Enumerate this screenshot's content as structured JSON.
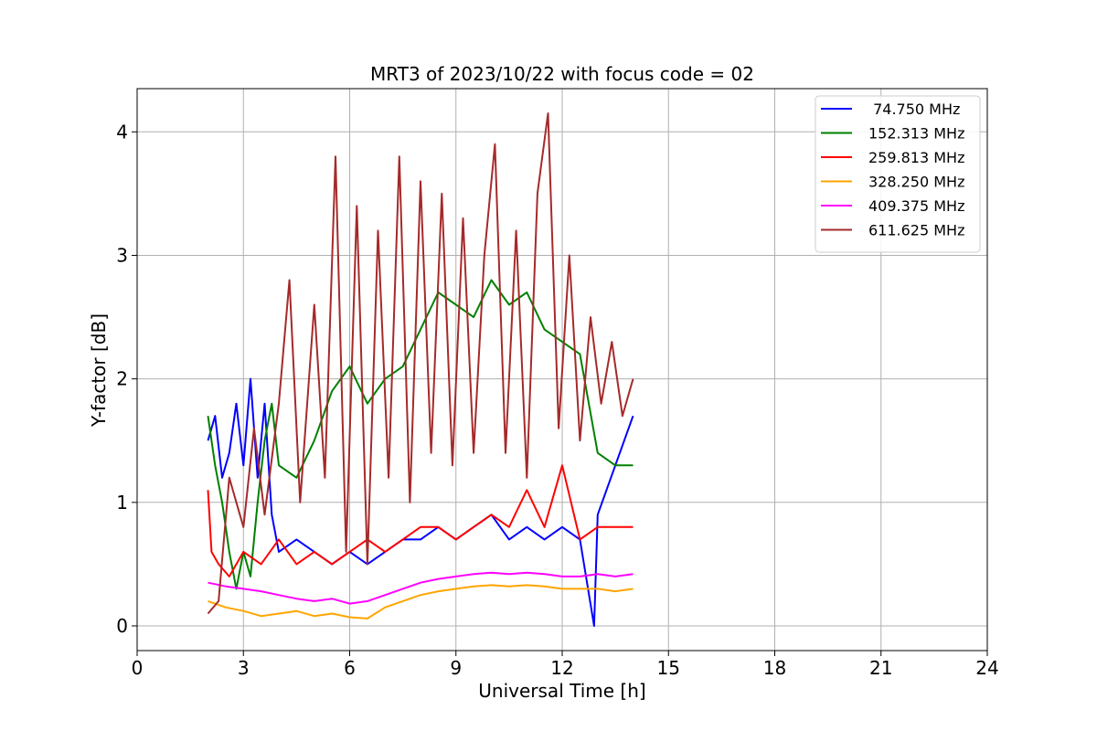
{
  "chart_data": {
    "type": "line",
    "title": "MRT3 of 2023/10/22 with focus code = 02",
    "xlabel": "Universal Time [h]",
    "ylabel": "Y-factor [dB]",
    "xlim": [
      0,
      24
    ],
    "ylim": [
      -0.2,
      4.35
    ],
    "xticks": [
      0,
      3,
      6,
      9,
      12,
      15,
      18,
      21,
      24
    ],
    "yticks": [
      0,
      1,
      2,
      3,
      4
    ],
    "grid": true,
    "legend_position": "top-right",
    "series": [
      {
        "name": " 74.750 MHz",
        "color": "#0000ff",
        "x": [
          2.0,
          2.2,
          2.4,
          2.6,
          2.8,
          3.0,
          3.2,
          3.4,
          3.6,
          3.8,
          4.0,
          4.5,
          5.0,
          5.5,
          6.0,
          6.5,
          7.0,
          7.5,
          8.0,
          8.5,
          9.0,
          9.5,
          10.0,
          10.5,
          11.0,
          11.5,
          12.0,
          12.5,
          12.9,
          13.0,
          13.5,
          14.0
        ],
        "values": [
          1.5,
          1.7,
          1.2,
          1.4,
          1.8,
          1.3,
          2.0,
          1.2,
          1.8,
          0.9,
          0.6,
          0.7,
          0.6,
          0.5,
          0.6,
          0.5,
          0.6,
          0.7,
          0.7,
          0.8,
          0.7,
          0.8,
          0.9,
          0.7,
          0.8,
          0.7,
          0.8,
          0.7,
          0.0,
          0.9,
          1.3,
          1.7
        ]
      },
      {
        "name": "152.313 MHz",
        "color": "#008000",
        "x": [
          2.0,
          2.2,
          2.4,
          2.6,
          2.8,
          3.0,
          3.2,
          3.4,
          3.6,
          3.8,
          4.0,
          4.5,
          5.0,
          5.5,
          6.0,
          6.5,
          7.0,
          7.5,
          8.0,
          8.5,
          9.0,
          9.5,
          10.0,
          10.5,
          11.0,
          11.5,
          12.0,
          12.5,
          13.0,
          13.5,
          14.0
        ],
        "values": [
          1.7,
          1.3,
          1.0,
          0.6,
          0.3,
          0.6,
          0.4,
          1.0,
          1.5,
          1.8,
          1.3,
          1.2,
          1.5,
          1.9,
          2.1,
          1.8,
          2.0,
          2.1,
          2.4,
          2.7,
          2.6,
          2.5,
          2.8,
          2.6,
          2.7,
          2.4,
          2.3,
          2.2,
          1.4,
          1.3,
          1.3
        ]
      },
      {
        "name": "259.813 MHz",
        "color": "#ff0000",
        "x": [
          2.0,
          2.1,
          2.3,
          2.6,
          3.0,
          3.5,
          4.0,
          4.5,
          5.0,
          5.5,
          6.0,
          6.5,
          7.0,
          7.5,
          8.0,
          8.5,
          9.0,
          9.5,
          10.0,
          10.5,
          11.0,
          11.5,
          12.0,
          12.5,
          13.0,
          13.5,
          14.0
        ],
        "values": [
          1.1,
          0.6,
          0.5,
          0.4,
          0.6,
          0.5,
          0.7,
          0.5,
          0.6,
          0.5,
          0.6,
          0.7,
          0.6,
          0.7,
          0.8,
          0.8,
          0.7,
          0.8,
          0.9,
          0.8,
          1.1,
          0.8,
          1.3,
          0.7,
          0.8,
          0.8,
          0.8
        ]
      },
      {
        "name": "328.250 MHz",
        "color": "#ffa500",
        "x": [
          2.0,
          2.5,
          3.0,
          3.5,
          4.0,
          4.5,
          5.0,
          5.5,
          6.0,
          6.5,
          7.0,
          7.5,
          8.0,
          8.5,
          9.0,
          9.5,
          10.0,
          10.5,
          11.0,
          11.5,
          12.0,
          12.5,
          13.0,
          13.5,
          14.0
        ],
        "values": [
          0.2,
          0.15,
          0.12,
          0.08,
          0.1,
          0.12,
          0.08,
          0.1,
          0.07,
          0.06,
          0.15,
          0.2,
          0.25,
          0.28,
          0.3,
          0.32,
          0.33,
          0.32,
          0.33,
          0.32,
          0.3,
          0.3,
          0.3,
          0.28,
          0.3
        ]
      },
      {
        "name": "409.375 MHz",
        "color": "#ff00ff",
        "x": [
          2.0,
          2.5,
          3.0,
          3.5,
          4.0,
          4.5,
          5.0,
          5.5,
          6.0,
          6.5,
          7.0,
          7.5,
          8.0,
          8.5,
          9.0,
          9.5,
          10.0,
          10.5,
          11.0,
          11.5,
          12.0,
          12.5,
          13.0,
          13.5,
          14.0
        ],
        "values": [
          0.35,
          0.32,
          0.3,
          0.28,
          0.25,
          0.22,
          0.2,
          0.22,
          0.18,
          0.2,
          0.25,
          0.3,
          0.35,
          0.38,
          0.4,
          0.42,
          0.43,
          0.42,
          0.43,
          0.42,
          0.4,
          0.4,
          0.42,
          0.4,
          0.42
        ]
      },
      {
        "name": "611.625 MHz",
        "color": "#a52a2a",
        "x": [
          2.0,
          2.3,
          2.6,
          3.0,
          3.3,
          3.6,
          4.0,
          4.3,
          4.6,
          5.0,
          5.3,
          5.6,
          5.9,
          6.2,
          6.5,
          6.8,
          7.1,
          7.4,
          7.7,
          8.0,
          8.3,
          8.6,
          8.9,
          9.2,
          9.5,
          9.8,
          10.1,
          10.4,
          10.7,
          11.0,
          11.3,
          11.6,
          11.9,
          12.2,
          12.5,
          12.8,
          13.1,
          13.4,
          13.7,
          14.0
        ],
        "values": [
          0.1,
          0.2,
          1.2,
          0.8,
          1.6,
          0.9,
          1.8,
          2.8,
          1.0,
          2.6,
          1.2,
          3.8,
          0.6,
          3.4,
          0.5,
          3.2,
          1.2,
          3.8,
          1.0,
          3.6,
          1.4,
          3.5,
          1.3,
          3.3,
          1.4,
          3.0,
          3.9,
          1.4,
          3.2,
          1.2,
          3.5,
          4.15,
          1.6,
          3.0,
          1.5,
          2.5,
          1.8,
          2.3,
          1.7,
          2.0
        ]
      }
    ]
  }
}
